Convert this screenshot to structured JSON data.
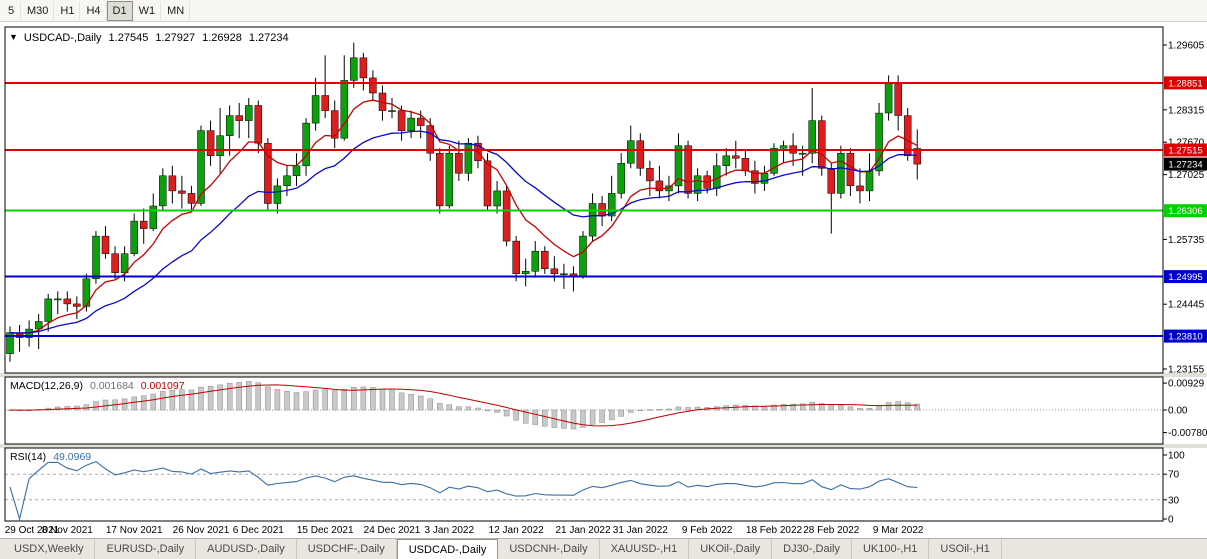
{
  "toolbar": {
    "timeframes": [
      {
        "label": "5",
        "active": false
      },
      {
        "label": "M30",
        "active": false
      },
      {
        "label": "H1",
        "active": false
      },
      {
        "label": "H4",
        "active": false
      },
      {
        "label": "D1",
        "active": true
      },
      {
        "label": "W1",
        "active": false
      },
      {
        "label": "MN",
        "active": false
      }
    ]
  },
  "chart": {
    "symbol_label": "USDCAD-,Daily",
    "ohlc": {
      "open": "1.27545",
      "high": "1.27927",
      "low": "1.26928",
      "close": "1.27234"
    }
  },
  "chart_data": {
    "type": "candlestick",
    "symbol": "USDCAD-",
    "timeframe": "Daily",
    "colors": {
      "up": "#0da00d",
      "down": "#dc1e1e",
      "wick": "#000000"
    },
    "y_axis": {
      "tick_prices": [
        1.29605,
        1.2896,
        1.28315,
        1.2767,
        1.27025,
        1.2638,
        1.25735,
        1.2509,
        1.24445,
        1.238,
        1.23155
      ],
      "visible_tick_labels": [
        "1.29605",
        "1.28315",
        "1.27670",
        "1.27025",
        "1.25735",
        "1.24445",
        "1.23155"
      ]
    },
    "levels": [
      {
        "price": 1.28851,
        "label": "1.28851",
        "color": "#dd0000"
      },
      {
        "price": 1.27515,
        "label": "1.27515",
        "color": "#dd0000"
      },
      {
        "price": 1.26306,
        "label": "1.26306",
        "color": "#00d300"
      },
      {
        "price": 1.24995,
        "label": "1.24995",
        "color": "#0000cc"
      },
      {
        "price": 1.2381,
        "label": "1.23810",
        "color": "#0000cc"
      }
    ],
    "current_price": {
      "price": 1.27234,
      "label": "1.27234"
    },
    "moving_averages": [
      {
        "period": 8,
        "color": "#c80000",
        "name": "ma-fast"
      },
      {
        "period": 21,
        "color": "#0a0ac8",
        "name": "ma-slow"
      }
    ],
    "candles": [
      [
        1.2346,
        1.24,
        1.233,
        1.2388
      ],
      [
        1.2388,
        1.2403,
        1.235,
        1.2378
      ],
      [
        1.2378,
        1.2412,
        1.236,
        1.2395
      ],
      [
        1.2395,
        1.2425,
        1.2355,
        1.241
      ],
      [
        1.241,
        1.2465,
        1.239,
        1.2455
      ],
      [
        1.2455,
        1.247,
        1.2425,
        1.2455
      ],
      [
        1.2455,
        1.247,
        1.243,
        1.2445
      ],
      [
        1.2445,
        1.246,
        1.2415,
        1.244
      ],
      [
        1.244,
        1.2505,
        1.243,
        1.2495
      ],
      [
        1.2495,
        1.259,
        1.2485,
        1.258
      ],
      [
        1.258,
        1.26,
        1.2535,
        1.2545
      ],
      [
        1.2545,
        1.256,
        1.2495,
        1.2507
      ],
      [
        1.2507,
        1.256,
        1.249,
        1.2545
      ],
      [
        1.2545,
        1.2625,
        1.254,
        1.261
      ],
      [
        1.261,
        1.2635,
        1.2565,
        1.2595
      ],
      [
        1.2595,
        1.2665,
        1.259,
        1.264
      ],
      [
        1.264,
        1.2715,
        1.263,
        1.27
      ],
      [
        1.27,
        1.272,
        1.2645,
        1.267
      ],
      [
        1.267,
        1.27,
        1.2635,
        1.2665
      ],
      [
        1.2665,
        1.268,
        1.263,
        1.2645
      ],
      [
        1.2645,
        1.28,
        1.264,
        1.279
      ],
      [
        1.279,
        1.281,
        1.272,
        1.274
      ],
      [
        1.274,
        1.2835,
        1.2705,
        1.278
      ],
      [
        1.278,
        1.284,
        1.274,
        1.282
      ],
      [
        1.282,
        1.2845,
        1.2775,
        1.281
      ],
      [
        1.281,
        1.2855,
        1.2775,
        1.284
      ],
      [
        1.284,
        1.285,
        1.2745,
        1.2765
      ],
      [
        1.2765,
        1.2775,
        1.263,
        1.2645
      ],
      [
        1.2645,
        1.2695,
        1.2625,
        1.268
      ],
      [
        1.268,
        1.272,
        1.266,
        1.27
      ],
      [
        1.27,
        1.2745,
        1.268,
        1.272
      ],
      [
        1.272,
        1.2815,
        1.27,
        1.2805
      ],
      [
        1.2805,
        1.2895,
        1.279,
        1.286
      ],
      [
        1.286,
        1.294,
        1.2815,
        1.283
      ],
      [
        1.283,
        1.285,
        1.2755,
        1.2775
      ],
      [
        1.2775,
        1.294,
        1.277,
        1.289
      ],
      [
        1.289,
        1.2965,
        1.2875,
        1.2935
      ],
      [
        1.2935,
        1.2945,
        1.287,
        1.2895
      ],
      [
        1.2895,
        1.291,
        1.285,
        1.2865
      ],
      [
        1.2865,
        1.288,
        1.281,
        1.283
      ],
      [
        1.283,
        1.2855,
        1.2815,
        1.283
      ],
      [
        1.283,
        1.284,
        1.277,
        1.279
      ],
      [
        1.279,
        1.283,
        1.2775,
        1.2815
      ],
      [
        1.2815,
        1.283,
        1.2775,
        1.28
      ],
      [
        1.28,
        1.2815,
        1.273,
        1.2745
      ],
      [
        1.2745,
        1.2755,
        1.2625,
        1.264
      ],
      [
        1.264,
        1.276,
        1.2635,
        1.2745
      ],
      [
        1.2745,
        1.277,
        1.269,
        1.2705
      ],
      [
        1.2705,
        1.2775,
        1.269,
        1.2765
      ],
      [
        1.2765,
        1.278,
        1.2715,
        1.273
      ],
      [
        1.273,
        1.2745,
        1.263,
        1.264
      ],
      [
        1.264,
        1.269,
        1.2625,
        1.267
      ],
      [
        1.267,
        1.268,
        1.256,
        1.257
      ],
      [
        1.257,
        1.258,
        1.249,
        1.2505
      ],
      [
        1.2505,
        1.2535,
        1.248,
        1.251
      ],
      [
        1.251,
        1.257,
        1.25,
        1.255
      ],
      [
        1.255,
        1.256,
        1.2505,
        1.2515
      ],
      [
        1.2515,
        1.254,
        1.249,
        1.2505
      ],
      [
        1.2505,
        1.2525,
        1.2475,
        1.2505
      ],
      [
        1.2505,
        1.252,
        1.247,
        1.25
      ],
      [
        1.25,
        1.259,
        1.2495,
        1.258
      ],
      [
        1.258,
        1.2665,
        1.257,
        1.2645
      ],
      [
        1.2645,
        1.266,
        1.26,
        1.262
      ],
      [
        1.262,
        1.27,
        1.261,
        1.2665
      ],
      [
        1.2665,
        1.2745,
        1.2655,
        1.2725
      ],
      [
        1.2725,
        1.28,
        1.2715,
        1.277
      ],
      [
        1.277,
        1.2785,
        1.27,
        1.2715
      ],
      [
        1.2715,
        1.273,
        1.266,
        1.269
      ],
      [
        1.269,
        1.272,
        1.2655,
        1.267
      ],
      [
        1.267,
        1.27,
        1.265,
        1.268
      ],
      [
        1.268,
        1.2785,
        1.2665,
        1.276
      ],
      [
        1.276,
        1.277,
        1.2655,
        1.2665
      ],
      [
        1.2665,
        1.2715,
        1.265,
        1.27
      ],
      [
        1.27,
        1.271,
        1.2665,
        1.2675
      ],
      [
        1.2675,
        1.2745,
        1.266,
        1.272
      ],
      [
        1.272,
        1.2755,
        1.27,
        1.274
      ],
      [
        1.274,
        1.277,
        1.2715,
        1.2735
      ],
      [
        1.2735,
        1.275,
        1.27,
        1.271
      ],
      [
        1.271,
        1.273,
        1.2665,
        1.2685
      ],
      [
        1.2685,
        1.272,
        1.267,
        1.2705
      ],
      [
        1.2705,
        1.2765,
        1.27,
        1.2755
      ],
      [
        1.2755,
        1.277,
        1.2725,
        1.276
      ],
      [
        1.276,
        1.2785,
        1.272,
        1.2745
      ],
      [
        1.2745,
        1.276,
        1.27,
        1.2745
      ],
      [
        1.2745,
        1.2875,
        1.2725,
        1.281
      ],
      [
        1.281,
        1.282,
        1.27,
        1.2715
      ],
      [
        1.2715,
        1.2725,
        1.2585,
        1.2665
      ],
      [
        1.2665,
        1.276,
        1.2655,
        1.2745
      ],
      [
        1.2745,
        1.2755,
        1.266,
        1.268
      ],
      [
        1.268,
        1.2715,
        1.2645,
        1.267
      ],
      [
        1.267,
        1.2745,
        1.265,
        1.271
      ],
      [
        1.271,
        1.2845,
        1.27,
        1.2825
      ],
      [
        1.2825,
        1.29,
        1.281,
        1.2885
      ],
      [
        1.2885,
        1.29,
        1.279,
        1.282
      ],
      [
        1.282,
        1.2835,
        1.273,
        1.274
      ],
      [
        1.27545,
        1.27927,
        1.26928,
        1.27234
      ]
    ],
    "x_axis_labels": [
      {
        "label": "29 Oct 2021",
        "index": 0
      },
      {
        "label": "8 Nov 2021",
        "index": 6
      },
      {
        "label": "17 Nov 2021",
        "index": 13
      },
      {
        "label": "26 Nov 2021",
        "index": 20
      },
      {
        "label": "6 Dec 2021",
        "index": 26
      },
      {
        "label": "15 Dec 2021",
        "index": 33
      },
      {
        "label": "24 Dec 2021",
        "index": 40
      },
      {
        "label": "3 Jan 2022",
        "index": 46
      },
      {
        "label": "12 Jan 2022",
        "index": 53
      },
      {
        "label": "21 Jan 2022",
        "index": 60
      },
      {
        "label": "31 Jan 2022",
        "index": 66
      },
      {
        "label": "9 Feb 2022",
        "index": 73
      },
      {
        "label": "18 Feb 2022",
        "index": 80
      },
      {
        "label": "28 Feb 2022",
        "index": 86
      },
      {
        "label": "9 Mar 2022",
        "index": 93
      }
    ],
    "indicators": {
      "macd": {
        "name": "MACD(12,26,9)",
        "main_value": "0.001684",
        "signal_value": "0.001097",
        "params": {
          "fast": 12,
          "slow": 26,
          "signal": 9
        },
        "ticks": [
          {
            "v": 0.00929,
            "label": "0.00929"
          },
          {
            "v": 0,
            "label": "0.00"
          },
          {
            "v": -0.0078,
            "label": "-0.00780"
          }
        ],
        "histogram_color": "#c9c9c9",
        "signal_color": "#c00000"
      },
      "rsi": {
        "name": "RSI(14)",
        "value": "49.0969",
        "period": 14,
        "ticks": [
          {
            "v": 100,
            "label": "100"
          },
          {
            "v": 70,
            "label": "70"
          },
          {
            "v": 30,
            "label": "30"
          },
          {
            "v": 0,
            "label": "0"
          }
        ],
        "levels": [
          70,
          30
        ],
        "line_color": "#3a6ea5"
      }
    }
  },
  "tabs": [
    {
      "label": "USDX,Weekly",
      "active": false
    },
    {
      "label": "EURUSD-,Daily",
      "active": false
    },
    {
      "label": "AUDUSD-,Daily",
      "active": false
    },
    {
      "label": "USDCHF-,Daily",
      "active": false
    },
    {
      "label": "USDCAD-,Daily",
      "active": true
    },
    {
      "label": "USDCNH-,Daily",
      "active": false
    },
    {
      "label": "XAUUSD-,H1",
      "active": false
    },
    {
      "label": "UKOil-,Daily",
      "active": false
    },
    {
      "label": "DJ30-,Daily",
      "active": false
    },
    {
      "label": "UK100-,H1",
      "active": false
    },
    {
      "label": "USOil-,H1",
      "active": false
    }
  ]
}
